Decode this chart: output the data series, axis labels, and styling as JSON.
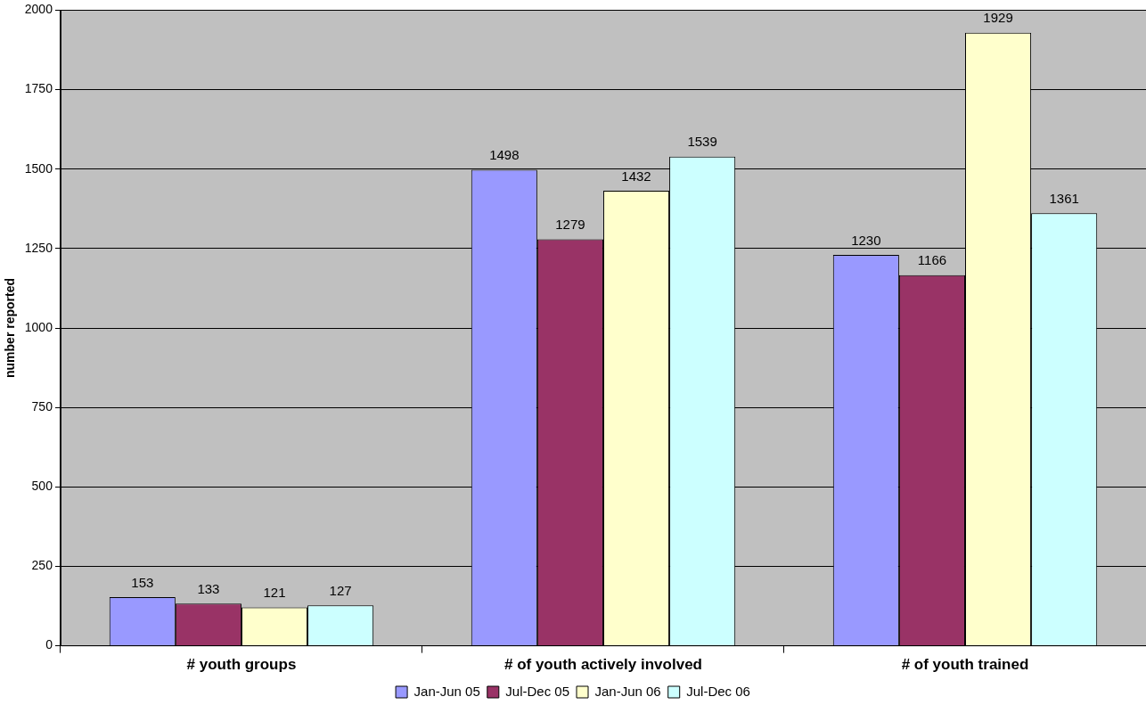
{
  "chart_data": {
    "type": "bar",
    "ylabel": "number reported",
    "categories": [
      "# youth groups",
      "# of youth actively involved",
      "# of youth trained"
    ],
    "series": [
      {
        "name": "Jan-Jun 05",
        "color": "#9999ff",
        "values": [
          153,
          1498,
          1230
        ]
      },
      {
        "name": "Jul-Dec 05",
        "color": "#993366",
        "values": [
          133,
          1279,
          1166
        ]
      },
      {
        "name": "Jan-Jun 06",
        "color": "#ffffcc",
        "values": [
          121,
          1432,
          1929
        ]
      },
      {
        "name": "Jul-Dec 06",
        "color": "#ccffff",
        "values": [
          127,
          1539,
          1361
        ]
      }
    ],
    "ylim": [
      0,
      2000
    ],
    "yticks": [
      0,
      250,
      500,
      750,
      1000,
      1250,
      1500,
      1750,
      2000
    ],
    "grid": "y",
    "legend": "bottom",
    "data_labels": true
  }
}
